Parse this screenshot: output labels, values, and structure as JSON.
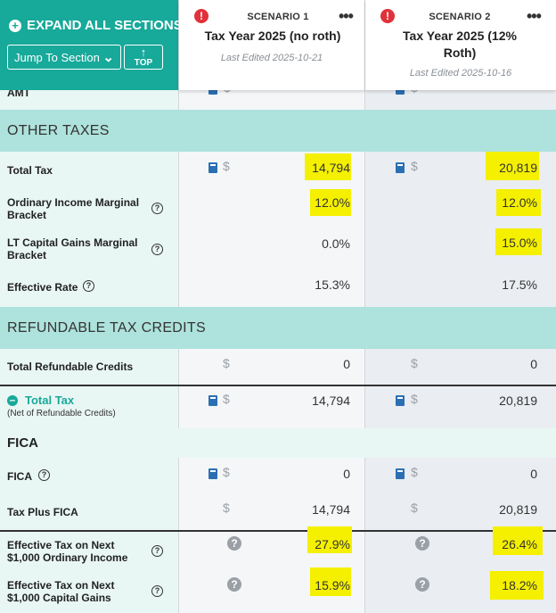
{
  "toolbar": {
    "expand_label": "EXPAND ALL SECTIONS",
    "jump_label": "Jump To Section",
    "top_label": "TOP"
  },
  "scenarios": [
    {
      "label": "SCENARIO 1",
      "title": "Tax Year 2025 (no roth)",
      "edited": "Last Edited 2025-10-21"
    },
    {
      "label": "SCENARIO 2",
      "title": "Tax Year 2025 (12% Roth)",
      "edited": "Last Edited 2025-10-16"
    }
  ],
  "partial_row": {
    "label": "AMT"
  },
  "sections": {
    "other_taxes": "OTHER TAXES",
    "refundable": "REFUNDABLE TAX CREDITS",
    "fica": "FICA"
  },
  "rows": {
    "total_tax": {
      "label": "Total Tax",
      "s1": "14,794",
      "s2": "20,819"
    },
    "ord_marginal": {
      "label_line1": "Ordinary Income Marginal",
      "label_line2": "Bracket",
      "s1": "12.0%",
      "s2": "12.0%"
    },
    "ltcg_marginal": {
      "label_line1": "LT Capital Gains Marginal",
      "label_line2": "Bracket",
      "s1": "0.0%",
      "s2": "15.0%"
    },
    "effective_rate": {
      "label": "Effective Rate",
      "s1": "15.3%",
      "s2": "17.5%"
    },
    "total_refundable": {
      "label": "Total Refundable Credits",
      "s1": "0",
      "s2": "0"
    },
    "total_tax_net": {
      "label": "Total Tax",
      "sublabel": "(Net of Refundable Credits)",
      "s1": "14,794",
      "s2": "20,819"
    },
    "fica": {
      "label": "FICA",
      "s1": "0",
      "s2": "0"
    },
    "tax_plus_fica": {
      "label": "Tax Plus FICA",
      "s1": "14,794",
      "s2": "20,819"
    },
    "eff_next_ord": {
      "label_line1": "Effective Tax on Next",
      "label_line2": "$1,000 Ordinary Income",
      "s1": "27.9%",
      "s2": "26.4%"
    },
    "eff_next_cg": {
      "label_line1": "Effective Tax on Next",
      "label_line2": "$1,000 Capital Gains",
      "s1": "15.9%",
      "s2": "18.2%"
    }
  },
  "symbols": {
    "dollar": "$",
    "help": "?",
    "alert": "!",
    "more": "•••"
  },
  "colors": {
    "accent": "#17a99a",
    "band": "#aee2dc",
    "highlight": "#f4f000",
    "alert": "#e0323b"
  }
}
